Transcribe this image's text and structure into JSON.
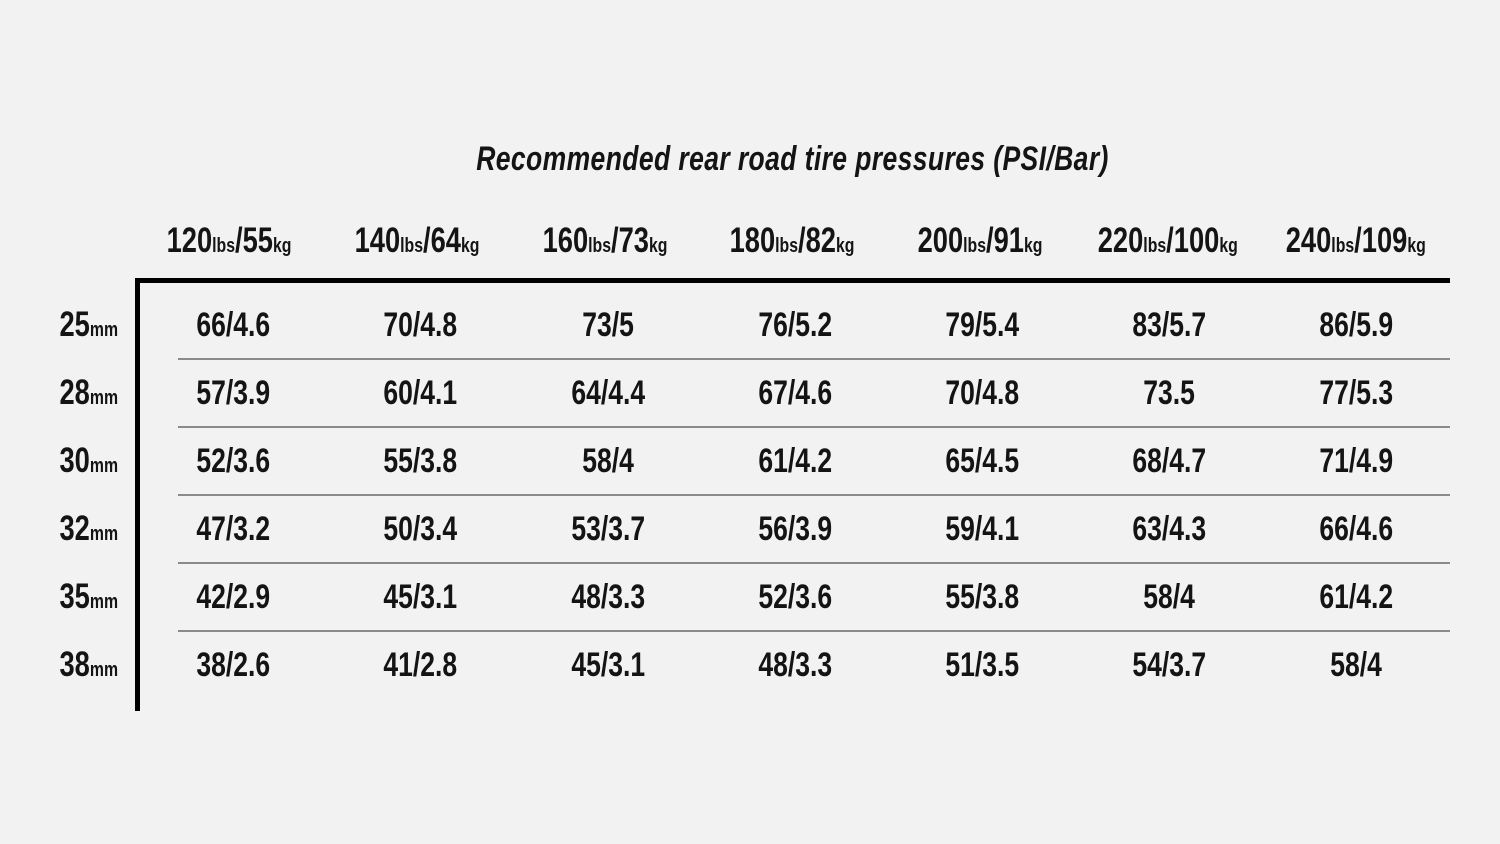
{
  "colors": {
    "background": "#f2f2f2",
    "text": "#141414",
    "border": "#000000",
    "row_separator": "#8a8a8a"
  },
  "chart_data": {
    "type": "table",
    "title": "Recommended rear road tire pressures (PSI/Bar)",
    "value_format": "PSI/Bar",
    "separator": "/",
    "units": {
      "lbs": "lbs",
      "kg": "kg",
      "mm": "mm"
    },
    "columns": [
      {
        "lbs": "120",
        "kg": "55"
      },
      {
        "lbs": "140",
        "kg": "64"
      },
      {
        "lbs": "160",
        "kg": "73"
      },
      {
        "lbs": "180",
        "kg": "82"
      },
      {
        "lbs": "200",
        "kg": "91"
      },
      {
        "lbs": "220",
        "kg": "100"
      },
      {
        "lbs": "240",
        "kg": "109"
      }
    ],
    "rows": [
      {
        "size": "25",
        "values": [
          "66/4.6",
          "70/4.8",
          "73/5",
          "76/5.2",
          "79/5.4",
          "83/5.7",
          "86/5.9"
        ]
      },
      {
        "size": "28",
        "values": [
          "57/3.9",
          "60/4.1",
          "64/4.4",
          "67/4.6",
          "70/4.8",
          "73.5",
          "77/5.3"
        ]
      },
      {
        "size": "30",
        "values": [
          "52/3.6",
          "55/3.8",
          "58/4",
          "61/4.2",
          "65/4.5",
          "68/4.7",
          "71/4.9"
        ]
      },
      {
        "size": "32",
        "values": [
          "47/3.2",
          "50/3.4",
          "53/3.7",
          "56/3.9",
          "59/4.1",
          "63/4.3",
          "66/4.6"
        ]
      },
      {
        "size": "35",
        "values": [
          "42/2.9",
          "45/3.1",
          "48/3.3",
          "52/3.6",
          "55/3.8",
          "58/4",
          "61/4.2"
        ]
      },
      {
        "size": "38",
        "values": [
          "38/2.6",
          "41/2.8",
          "45/3.1",
          "48/3.3",
          "51/3.5",
          "54/3.7",
          "58/4"
        ]
      }
    ]
  }
}
